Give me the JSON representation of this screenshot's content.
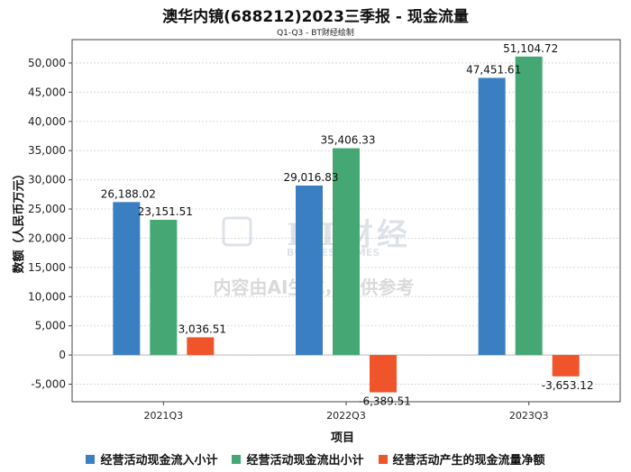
{
  "title": "澳华内镜(688212)2023三季报 - 现金流量",
  "subtitle": "Q1-Q3 - BT财经绘制",
  "watermark": {
    "logo_text": "BT财经",
    "logo_sub": "BUSINESS TIMES",
    "notice": "内容由AI生成，仅供参考"
  },
  "chart_data": {
    "type": "bar",
    "title": "澳华内镜(688212)2023三季报 - 现金流量",
    "subtitle": "Q1-Q3 - BT财经绘制",
    "xlabel": "项目",
    "ylabel": "数额（人民币万元）",
    "ylim": [
      -8000,
      54000
    ],
    "yticks": [
      -5000,
      0,
      5000,
      10000,
      15000,
      20000,
      25000,
      30000,
      35000,
      40000,
      45000,
      50000
    ],
    "ytick_labels": [
      "-5,000",
      "0",
      "5,000",
      "10,000",
      "15,000",
      "20,000",
      "25,000",
      "30,000",
      "35,000",
      "40,000",
      "45,000",
      "50,000"
    ],
    "categories": [
      "2021Q3",
      "2022Q3",
      "2023Q3"
    ],
    "series": [
      {
        "name": "经营活动现金流入小计",
        "color": "#3a7fc1",
        "values": [
          26188.02,
          29016.83,
          47451.61
        ],
        "labels": [
          "26,188.02",
          "29,016.83",
          "47,451.61"
        ]
      },
      {
        "name": "经营活动现金流出小计",
        "color": "#45a874",
        "values": [
          23151.51,
          35406.33,
          51104.72
        ],
        "labels": [
          "23,151.51",
          "35,406.33",
          "51,104.72"
        ]
      },
      {
        "name": "经营活动产生的现金流量净额",
        "color": "#f0542a",
        "values": [
          3036.51,
          -6389.51,
          -3653.12
        ],
        "labels": [
          "3,036.51",
          "-6,389.51",
          "-3,653.12"
        ]
      }
    ],
    "legend_position": "bottom",
    "grid": true
  }
}
